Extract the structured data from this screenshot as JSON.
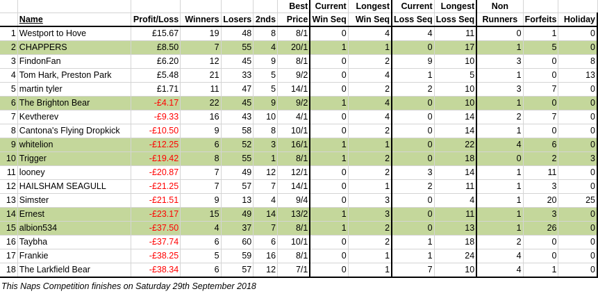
{
  "headers": {
    "name": "Name",
    "profit_loss": "Profit/Loss",
    "winners": "Winners",
    "losers": "Losers",
    "seconds": "2nds",
    "best_price": [
      "Best",
      "Price"
    ],
    "current_win_seq": [
      "Current",
      "Win Seq"
    ],
    "longest_win_seq": [
      "Longest",
      "Win Seq"
    ],
    "current_loss_seq": [
      "Current",
      "Loss Seq"
    ],
    "longest_loss_seq": [
      "Longest",
      "Loss Seq"
    ],
    "non_runners": [
      "Non",
      "Runners"
    ],
    "forfeits": "Forfeits",
    "holiday": "Holiday"
  },
  "rows": [
    {
      "rank": "1",
      "name": "Westport to Hove",
      "pl": "£15.67",
      "neg": false,
      "w": "19",
      "l": "48",
      "s": "8",
      "bp": "8/1",
      "cws": "0",
      "lws": "4",
      "cls": "4",
      "lls": "11",
      "nr": "0",
      "f": "1",
      "h": "0",
      "hl": false
    },
    {
      "rank": "2",
      "name": "CHAPPERS",
      "pl": "£8.50",
      "neg": false,
      "w": "7",
      "l": "55",
      "s": "4",
      "bp": "20/1",
      "cws": "1",
      "lws": "1",
      "cls": "0",
      "lls": "17",
      "nr": "1",
      "f": "5",
      "h": "0",
      "hl": true
    },
    {
      "rank": "3",
      "name": "FindonFan",
      "pl": "£6.20",
      "neg": false,
      "w": "12",
      "l": "45",
      "s": "9",
      "bp": "8/1",
      "cws": "0",
      "lws": "2",
      "cls": "9",
      "lls": "10",
      "nr": "3",
      "f": "0",
      "h": "8",
      "hl": false
    },
    {
      "rank": "4",
      "name": "Tom Hark, Preston Park",
      "pl": "£5.48",
      "neg": false,
      "w": "21",
      "l": "33",
      "s": "5",
      "bp": "9/2",
      "cws": "0",
      "lws": "4",
      "cls": "1",
      "lls": "5",
      "nr": "1",
      "f": "0",
      "h": "13",
      "hl": false
    },
    {
      "rank": "5",
      "name": "martin tyler",
      "pl": "£1.71",
      "neg": false,
      "w": "11",
      "l": "47",
      "s": "5",
      "bp": "14/1",
      "cws": "0",
      "lws": "2",
      "cls": "2",
      "lls": "10",
      "nr": "3",
      "f": "7",
      "h": "0",
      "hl": false
    },
    {
      "rank": "6",
      "name": "The Brighton Bear",
      "pl": "-£4.17",
      "neg": true,
      "w": "22",
      "l": "45",
      "s": "9",
      "bp": "9/2",
      "cws": "1",
      "lws": "4",
      "cls": "0",
      "lls": "10",
      "nr": "1",
      "f": "0",
      "h": "0",
      "hl": true
    },
    {
      "rank": "7",
      "name": "Kevtherev",
      "pl": "-£9.33",
      "neg": true,
      "w": "16",
      "l": "43",
      "s": "10",
      "bp": "4/1",
      "cws": "0",
      "lws": "4",
      "cls": "0",
      "lls": "14",
      "nr": "2",
      "f": "7",
      "h": "0",
      "hl": false
    },
    {
      "rank": "8",
      "name": "Cantona's Flying Dropkick",
      "pl": "-£10.50",
      "neg": true,
      "w": "9",
      "l": "58",
      "s": "8",
      "bp": "10/1",
      "cws": "0",
      "lws": "2",
      "cls": "0",
      "lls": "14",
      "nr": "1",
      "f": "0",
      "h": "0",
      "hl": false
    },
    {
      "rank": "9",
      "name": "whitelion",
      "pl": "-£12.25",
      "neg": true,
      "w": "6",
      "l": "52",
      "s": "3",
      "bp": "16/1",
      "cws": "1",
      "lws": "1",
      "cls": "0",
      "lls": "22",
      "nr": "4",
      "f": "6",
      "h": "0",
      "hl": true
    },
    {
      "rank": "10",
      "name": "Trigger",
      "pl": "-£19.42",
      "neg": true,
      "w": "8",
      "l": "55",
      "s": "1",
      "bp": "8/1",
      "cws": "1",
      "lws": "2",
      "cls": "0",
      "lls": "18",
      "nr": "0",
      "f": "2",
      "h": "3",
      "hl": true
    },
    {
      "rank": "11",
      "name": "looney",
      "pl": "-£20.87",
      "neg": true,
      "w": "7",
      "l": "49",
      "s": "12",
      "bp": "12/1",
      "cws": "0",
      "lws": "2",
      "cls": "3",
      "lls": "14",
      "nr": "1",
      "f": "11",
      "h": "0",
      "hl": false
    },
    {
      "rank": "12",
      "name": "HAILSHAM SEAGULL",
      "pl": "-£21.25",
      "neg": true,
      "w": "7",
      "l": "57",
      "s": "7",
      "bp": "14/1",
      "cws": "0",
      "lws": "1",
      "cls": "2",
      "lls": "11",
      "nr": "1",
      "f": "3",
      "h": "0",
      "hl": false
    },
    {
      "rank": "13",
      "name": "Simster",
      "pl": "-£21.51",
      "neg": true,
      "w": "9",
      "l": "13",
      "s": "4",
      "bp": "9/4",
      "cws": "0",
      "lws": "3",
      "cls": "0",
      "lls": "4",
      "nr": "1",
      "f": "20",
      "h": "25",
      "hl": false
    },
    {
      "rank": "14",
      "name": "Ernest",
      "pl": "-£23.17",
      "neg": true,
      "w": "15",
      "l": "49",
      "s": "14",
      "bp": "13/2",
      "cws": "1",
      "lws": "3",
      "cls": "0",
      "lls": "11",
      "nr": "1",
      "f": "3",
      "h": "0",
      "hl": true
    },
    {
      "rank": "15",
      "name": "albion534",
      "pl": "-£37.50",
      "neg": true,
      "w": "4",
      "l": "37",
      "s": "7",
      "bp": "8/1",
      "cws": "1",
      "lws": "2",
      "cls": "0",
      "lls": "13",
      "nr": "1",
      "f": "26",
      "h": "0",
      "hl": true
    },
    {
      "rank": "16",
      "name": "Taybha",
      "pl": "-£37.74",
      "neg": true,
      "w": "6",
      "l": "60",
      "s": "6",
      "bp": "10/1",
      "cws": "0",
      "lws": "2",
      "cls": "1",
      "lls": "18",
      "nr": "2",
      "f": "0",
      "h": "0",
      "hl": false
    },
    {
      "rank": "17",
      "name": "Frankie",
      "pl": "-£38.25",
      "neg": true,
      "w": "5",
      "l": "59",
      "s": "16",
      "bp": "8/1",
      "cws": "0",
      "lws": "1",
      "cls": "1",
      "lls": "24",
      "nr": "4",
      "f": "0",
      "h": "0",
      "hl": false
    },
    {
      "rank": "18",
      "name": "The Larkfield Bear",
      "pl": "-£38.34",
      "neg": true,
      "w": "6",
      "l": "57",
      "s": "12",
      "bp": "7/1",
      "cws": "0",
      "lws": "1",
      "cls": "7",
      "lls": "10",
      "nr": "4",
      "f": "1",
      "h": "0",
      "hl": false
    }
  ],
  "footer": "This Naps Competition finishes on Saturday 29th September 2018",
  "colors": {
    "highlight": "#c4d79b",
    "negative": "#ff0000"
  }
}
